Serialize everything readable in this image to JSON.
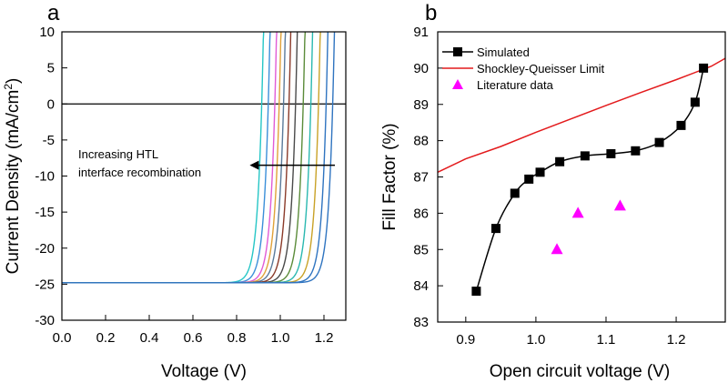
{
  "chart_data": [
    {
      "panel": "a",
      "type": "line",
      "xlabel": "Voltage (V)",
      "ylabel": "Current Density (mA/cm",
      "ylabel_sup": "2",
      "ylabel_tail": ")",
      "xlim": [
        0.0,
        1.3
      ],
      "ylim": [
        -30,
        10
      ],
      "xticks": [
        "0.0",
        "0.2",
        "0.4",
        "0.6",
        "0.8",
        "1.0",
        "1.2"
      ],
      "yticks": [
        "-30",
        "-25",
        "-20",
        "-15",
        "-10",
        "-5",
        "0",
        "5",
        "10"
      ],
      "jsc": -24.8,
      "zero_line": 0,
      "annotation": {
        "line1": "Increasing HTL",
        "line2": "interface recombination",
        "arrow_from_x": 1.25,
        "arrow_to_x": 0.86,
        "arrow_y": -8.5
      },
      "series": [
        {
          "voc": 0.915,
          "color": "#26c6c6"
        },
        {
          "voc": 0.945,
          "color": "#3b8fd9"
        },
        {
          "voc": 0.975,
          "color": "#e05bd6"
        },
        {
          "voc": 0.995,
          "color": "#e0a23a"
        },
        {
          "voc": 1.015,
          "color": "#5a7a9a"
        },
        {
          "voc": 1.04,
          "color": "#8b3b2a"
        },
        {
          "voc": 1.07,
          "color": "#4a4a4a"
        },
        {
          "voc": 1.105,
          "color": "#5b8c3a"
        },
        {
          "voc": 1.14,
          "color": "#2ab8b0"
        },
        {
          "voc": 1.175,
          "color": "#c9a227"
        },
        {
          "voc": 1.21,
          "color": "#2f74c0"
        },
        {
          "voc": 1.24,
          "color": "#2f74c0"
        }
      ]
    },
    {
      "panel": "b",
      "type": "line",
      "xlabel": "Open circuit voltage (V)",
      "ylabel": "Fill Factor (%)",
      "xlim": [
        0.86,
        1.27
      ],
      "ylim": [
        83,
        91
      ],
      "xticks": [
        "0.9",
        "1.0",
        "1.1",
        "1.2"
      ],
      "xtick_values": [
        0.9,
        1.0,
        1.1,
        1.2
      ],
      "yticks": [
        "83",
        "84",
        "85",
        "86",
        "87",
        "88",
        "89",
        "90",
        "91"
      ],
      "legend": [
        "Simulated",
        "Shockley-Queisser Limit",
        "Literature data"
      ],
      "legend_position": "top-left",
      "series": [
        {
          "name": "Simulated",
          "color": "#000000",
          "marker": "square",
          "x": [
            0.915,
            0.943,
            0.97,
            0.99,
            1.006,
            1.034,
            1.07,
            1.107,
            1.142,
            1.176,
            1.207,
            1.227,
            1.239
          ],
          "y": [
            83.85,
            85.58,
            86.55,
            86.94,
            87.13,
            87.42,
            87.58,
            87.64,
            87.72,
            87.95,
            88.42,
            89.06,
            90.0
          ]
        },
        {
          "name": "Shockley-Queisser Limit",
          "color": "#e31a1c",
          "marker": "none",
          "x": [
            0.86,
            0.9,
            0.95,
            1.0,
            1.05,
            1.1,
            1.15,
            1.2,
            1.25,
            1.27
          ],
          "y": [
            87.13,
            87.5,
            87.84,
            88.23,
            88.6,
            88.97,
            89.33,
            89.68,
            90.05,
            90.27
          ]
        },
        {
          "name": "Literature data",
          "color": "#ff00ff",
          "marker": "triangle",
          "x": [
            1.03,
            1.06,
            1.12
          ],
          "y": [
            85.0,
            86.0,
            86.2
          ]
        }
      ]
    }
  ]
}
